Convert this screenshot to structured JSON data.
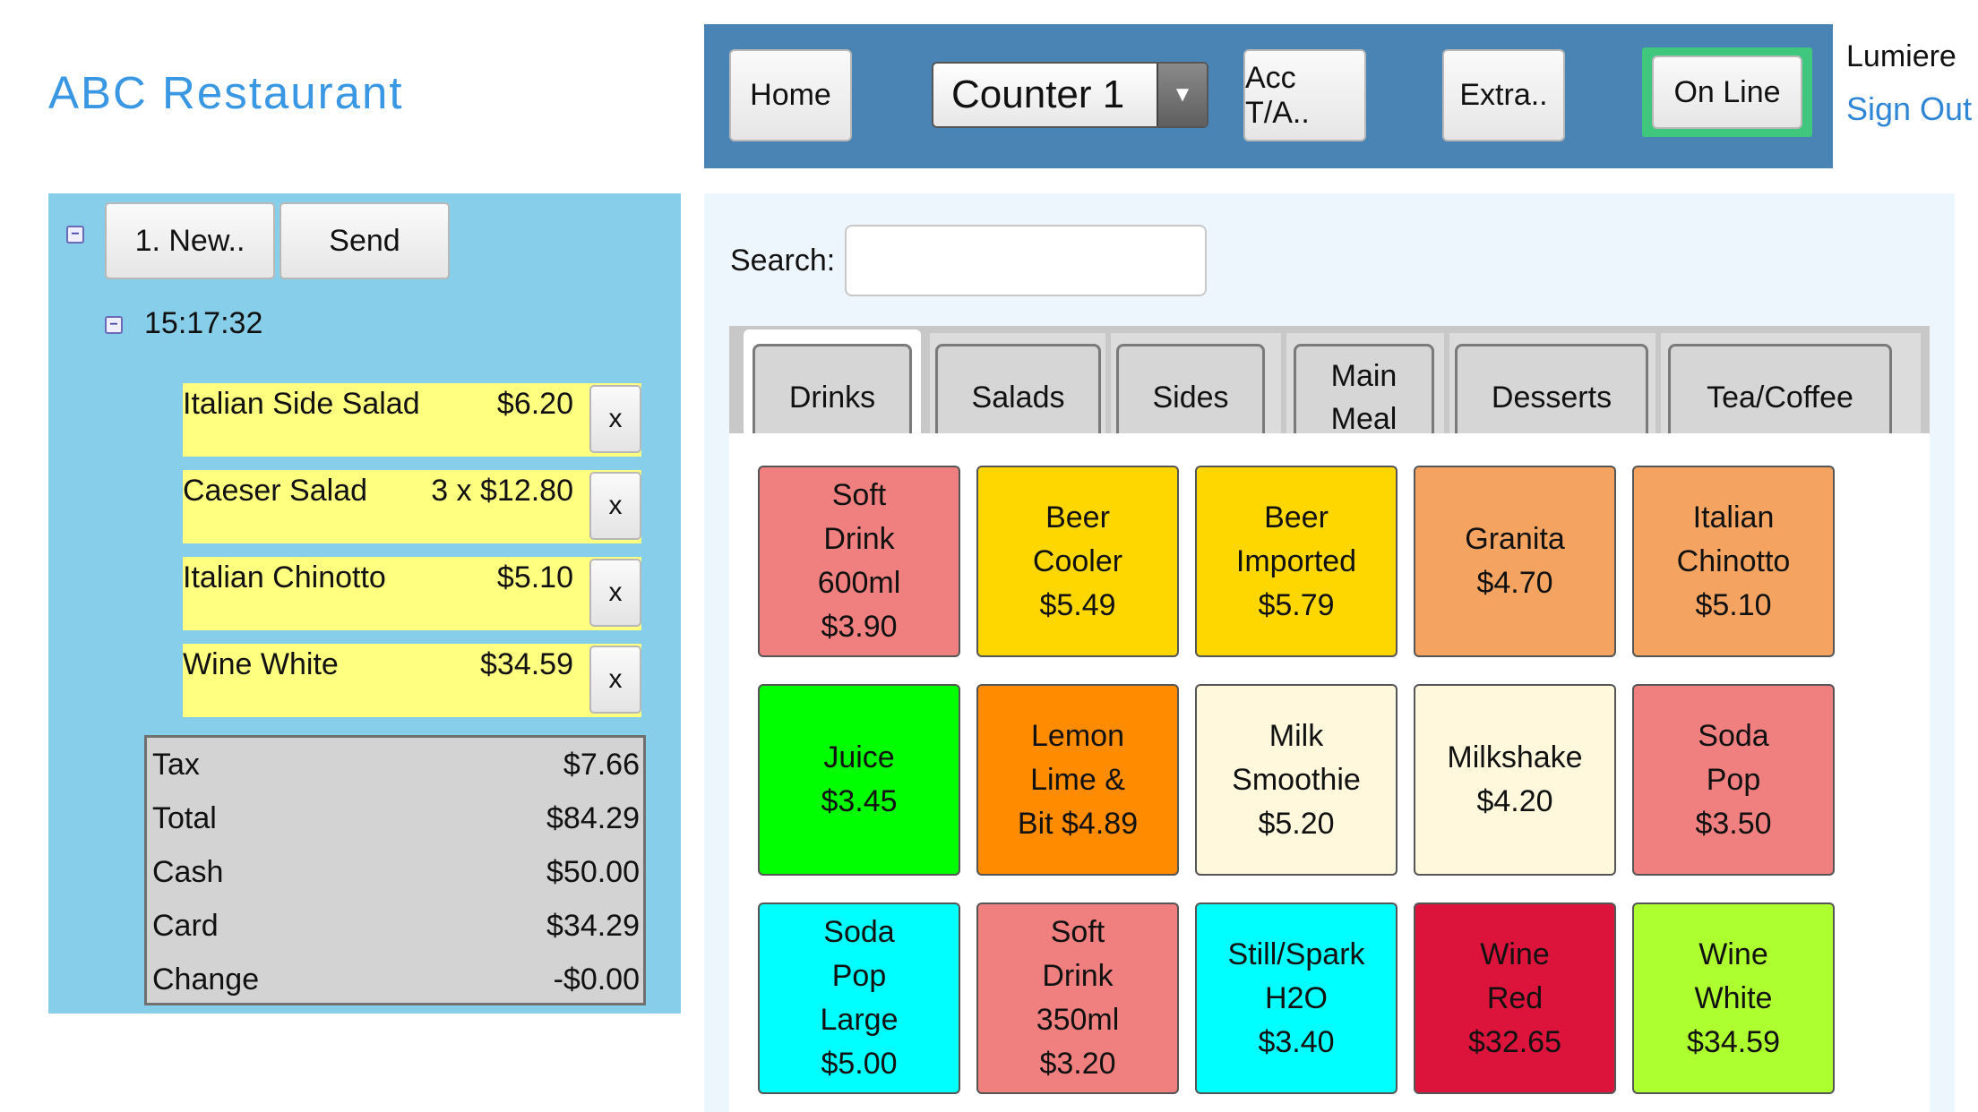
{
  "app_title": "ABC Restaurant",
  "toolbar": {
    "home_label": "Home",
    "counter_value": "Counter 1",
    "acc_label": "Acc T/A..",
    "extra_label": "Extra..",
    "online_label": "On Line"
  },
  "user": {
    "name": "Lumiere",
    "sign_out": "Sign Out"
  },
  "order": {
    "new_label": "1. New..",
    "send_label": "Send",
    "time": "15:17:32",
    "remove_label": "x",
    "items": [
      {
        "name": "Italian Side Salad",
        "price": "$6.20"
      },
      {
        "name": "Caeser Salad",
        "price": "3 x $12.80"
      },
      {
        "name": "Italian Chinotto",
        "price": "$5.10"
      },
      {
        "name": "Wine White",
        "price": "$34.59"
      }
    ],
    "totals": [
      {
        "label": "Tax",
        "value": "$7.66"
      },
      {
        "label": "Total",
        "value": "$84.29"
      },
      {
        "label": "Cash",
        "value": "$50.00"
      },
      {
        "label": "Card",
        "value": "$34.29"
      },
      {
        "label": "Change",
        "value": "-$0.00"
      }
    ]
  },
  "search": {
    "label": "Search:",
    "value": ""
  },
  "categories": [
    {
      "label": "Drinks",
      "active": true
    },
    {
      "label": "Salads"
    },
    {
      "label": "Sides"
    },
    {
      "label": "Main\nMeal"
    },
    {
      "label": "Desserts"
    },
    {
      "label": "Tea/Coffee"
    }
  ],
  "menu_items": [
    {
      "label": "Soft\nDrink\n600ml\n$3.90",
      "color": "#f08080"
    },
    {
      "label": "Beer\nCooler\n$5.49",
      "color": "#ffd700"
    },
    {
      "label": "Beer\nImported\n$5.79",
      "color": "#ffd700"
    },
    {
      "label": "Granita\n$4.70",
      "color": "#f4a460"
    },
    {
      "label": "Italian\nChinotto\n$5.10",
      "color": "#f4a460"
    },
    {
      "label": "Juice\n$3.45",
      "color": "#00ff00"
    },
    {
      "label": "Lemon\nLime &\nBit $4.89",
      "color": "#ff8c00"
    },
    {
      "label": "Milk\nSmoothie\n$5.20",
      "color": "#fff8dc"
    },
    {
      "label": "Milkshake\n$4.20",
      "color": "#fff8dc"
    },
    {
      "label": "Soda\nPop\n$3.50",
      "color": "#f08080"
    },
    {
      "label": "Soda\nPop\nLarge\n$5.00",
      "color": "#00ffff"
    },
    {
      "label": "Soft\nDrink\n350ml\n$3.20",
      "color": "#f08080"
    },
    {
      "label": "Still/Spark\nH2O\n$3.40",
      "color": "#00ffff"
    },
    {
      "label": "Wine\nRed\n$32.65",
      "color": "#dc143c"
    },
    {
      "label": "Wine\nWhite\n$34.59",
      "color": "#adff2f"
    }
  ]
}
